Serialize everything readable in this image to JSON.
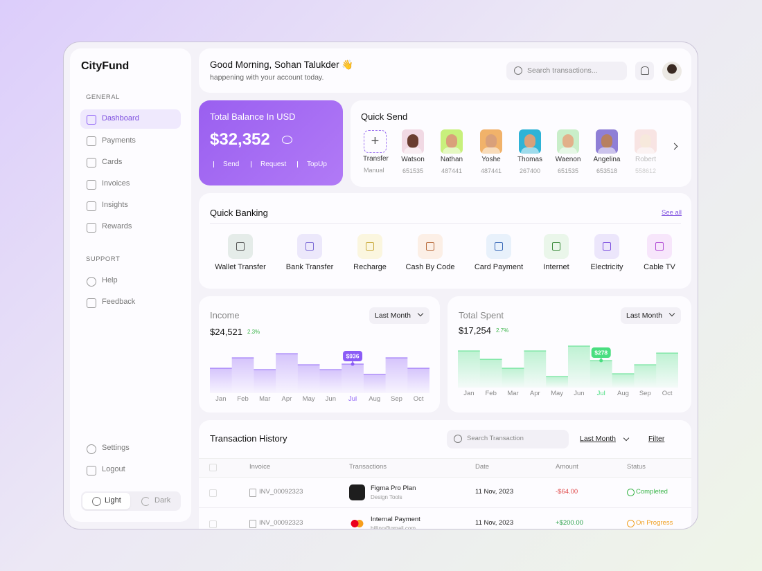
{
  "sidebar": {
    "brand": "CityFund",
    "general_heading": "GENERAL",
    "general": [
      "Dashboard",
      "Payments",
      "Cards",
      "Invoices",
      "Insights",
      "Rewards"
    ],
    "support_heading": "SUPPORT",
    "support": [
      "Help",
      "Feedback"
    ],
    "bottom": [
      "Settings",
      "Logout"
    ],
    "theme": [
      "Light",
      "Dark"
    ]
  },
  "header": {
    "greeting": "Good Morning, Sohan Talukder 👋",
    "subtitle": "happening with your account today.",
    "search_placeholder": "Search transactions..."
  },
  "balance": {
    "title": "Total Balance In USD",
    "amount": "$32,352",
    "actions": [
      "Send",
      "Request",
      "TopUp"
    ]
  },
  "quick_send": {
    "title": "Quick Send",
    "transfer": {
      "label": "Transfer",
      "sub": "Manual"
    },
    "contacts": [
      {
        "name": "Watson",
        "id": "651535"
      },
      {
        "name": "Nathan",
        "id": "487441"
      },
      {
        "name": "Yoshe",
        "id": "487441"
      },
      {
        "name": "Thomas",
        "id": "267400"
      },
      {
        "name": "Waenon",
        "id": "651535"
      },
      {
        "name": "Angelina",
        "id": "653518"
      },
      {
        "name": "Robert",
        "id": "558612"
      }
    ]
  },
  "quick_banking": {
    "title": "Quick Banking",
    "see_all": "See all",
    "items": [
      "Wallet Transfer",
      "Bank Transfer",
      "Recharge",
      "Cash By Code",
      "Card Payment",
      "Internet",
      "Electricity",
      "Cable TV"
    ]
  },
  "income": {
    "title": "Income",
    "filter": "Last Month",
    "amount": "$24,521",
    "change": "2.3%",
    "chart": {
      "type": "bar",
      "color": "#8b5cf6",
      "categories": [
        "Jan",
        "Feb",
        "Mar",
        "Apr",
        "May",
        "Jun",
        "Jul",
        "Aug",
        "Sep",
        "Oct"
      ],
      "values": [
        802,
        1137,
        758,
        1270,
        914,
        758,
        936,
        602,
        1137,
        802
      ],
      "value_labels": [
        null,
        null,
        null,
        null,
        null,
        null,
        "$936",
        null,
        null,
        null
      ]
    }
  },
  "spent": {
    "title": "Total Spent",
    "filter": "Last Month",
    "amount": "$17,254",
    "change": "2.7%",
    "chart": {
      "type": "bar",
      "color": "#4ade80",
      "categories": [
        "Jan",
        "Feb",
        "Mar",
        "Apr",
        "May",
        "Jun",
        "Jul",
        "Aug",
        "Sep",
        "Oct"
      ],
      "values": [
        378,
        292,
        200,
        378,
        114,
        428,
        278,
        143,
        235,
        356
      ],
      "value_labels": [
        null,
        null,
        null,
        null,
        null,
        null,
        "$278",
        null,
        null,
        null
      ]
    }
  },
  "transactions": {
    "title": "Transaction History",
    "search_placeholder": "Search Transaction",
    "filter_period": "Last Month",
    "filter": "Filter",
    "columns": [
      "Invoice",
      "Transactions",
      "Date",
      "Amount",
      "Status"
    ],
    "rows": [
      {
        "invoice": "INV_00092323",
        "name": "Figma Pro Plan",
        "sub": "Design Tools",
        "date": "11 Nov, 2023",
        "amount": "-$64.00",
        "status": "Completed"
      },
      {
        "invoice": "INV_00092323",
        "name": "Internal Payment",
        "sub": "billing@gmail.com",
        "date": "11 Nov, 2023",
        "amount": "+$200.00",
        "status": "On Progress"
      }
    ]
  }
}
